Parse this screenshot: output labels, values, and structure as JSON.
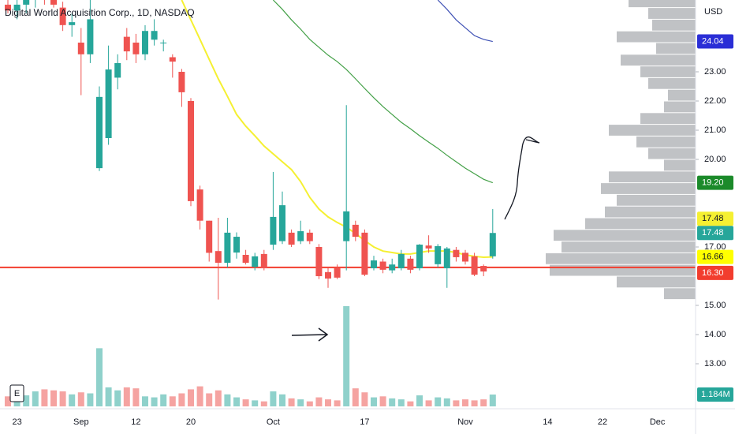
{
  "chart_data": {
    "type": "candlestick",
    "title": "Digital World Acquisition Corp., 1D, NASDAQ",
    "currency": "USD",
    "button": "E",
    "categories": [
      null,
      "23",
      null,
      null,
      null,
      null,
      null,
      null,
      "Sep",
      null,
      null,
      null,
      null,
      null,
      "12",
      null,
      null,
      null,
      null,
      null,
      "20",
      null,
      null,
      null,
      null,
      null,
      null,
      null,
      null,
      "Oct",
      null,
      null,
      null,
      null,
      null,
      null,
      null,
      null,
      null,
      "17",
      null,
      null,
      null,
      null,
      null,
      null,
      null,
      null,
      null,
      null,
      "Nov",
      null,
      null,
      null,
      null,
      null,
      null,
      null,
      null,
      "14",
      null,
      null,
      null,
      null,
      null,
      "22",
      null,
      null,
      null,
      null,
      null,
      "Dec",
      null
    ],
    "open": [
      25.3,
      25.1,
      25.3,
      25.5,
      25.8,
      25.6,
      25.2,
      24.6,
      24.0,
      23.6,
      19.7,
      20.73,
      22.8,
      24.2,
      24.0,
      23.6,
      24.1,
      24.0,
      23.5,
      23.0,
      22.0,
      18.97,
      17.9,
      16.86,
      16.46,
      16.81,
      16.73,
      16.32,
      16.76,
      17.08,
      17.2,
      17.49,
      17.2,
      17.49,
      17.0,
      16.14,
      16.27,
      17.2,
      17.76,
      17.49,
      16.27,
      16.5,
      16.2,
      16.27,
      16.6,
      16.27,
      17.05,
      16.41,
      16.27,
      16.9,
      16.8,
      16.68,
      16.35,
      16.68,
      null,
      null,
      null,
      null,
      null,
      null,
      null,
      null,
      null,
      null,
      null,
      null,
      null,
      null,
      null,
      null,
      null,
      null,
      null
    ],
    "high": [
      25.6,
      25.5,
      25.8,
      26.0,
      26.2,
      25.9,
      25.4,
      25.0,
      24.5,
      25.6,
      22.5,
      23.9,
      23.6,
      24.5,
      24.3,
      24.6,
      24.8,
      24.1,
      23.6,
      23.1,
      22.1,
      19.1,
      17.9,
      18.0,
      18.0,
      17.5,
      16.9,
      16.8,
      16.9,
      19.57,
      18.9,
      17.6,
      17.9,
      17.6,
      17.1,
      16.3,
      16.4,
      21.86,
      17.9,
      17.6,
      16.7,
      16.6,
      16.6,
      16.9,
      16.7,
      17.1,
      17.4,
      17.1,
      17.0,
      17.0,
      16.9,
      16.8,
      16.4,
      18.3,
      null,
      null,
      null,
      null,
      null,
      null,
      null,
      null,
      null,
      null,
      null,
      null,
      null,
      null,
      null,
      null,
      null,
      null,
      null
    ],
    "low": [
      25.0,
      24.8,
      25.0,
      25.2,
      25.3,
      25.2,
      24.4,
      24.2,
      22.2,
      23.3,
      19.6,
      20.5,
      22.4,
      23.4,
      23.3,
      23.4,
      23.9,
      23.7,
      22.8,
      21.8,
      18.4,
      17.6,
      16.5,
      15.2,
      16.3,
      16.6,
      16.4,
      16.2,
      16.2,
      16.9,
      17.1,
      17.0,
      17.1,
      17.1,
      15.9,
      15.6,
      15.9,
      16.2,
      17.2,
      16.0,
      16.2,
      16.1,
      16.1,
      16.2,
      16.1,
      16.2,
      16.8,
      16.3,
      15.6,
      16.5,
      16.4,
      16.0,
      16.0,
      16.6,
      null,
      null,
      null,
      null,
      null,
      null,
      null,
      null,
      null,
      null,
      null,
      null,
      null,
      null,
      null,
      null,
      null,
      null,
      null
    ],
    "close": [
      25.1,
      25.3,
      25.5,
      25.8,
      25.6,
      25.3,
      24.6,
      24.7,
      23.6,
      24.8,
      22.14,
      23.08,
      23.3,
      23.7,
      23.6,
      24.4,
      24.4,
      24.0,
      23.35,
      22.3,
      18.57,
      17.9,
      16.8,
      16.46,
      17.49,
      17.35,
      16.46,
      16.68,
      16.27,
      18.03,
      18.43,
      17.08,
      17.54,
      17.2,
      16.0,
      15.92,
      15.95,
      18.22,
      17.35,
      16.05,
      16.54,
      16.22,
      16.4,
      16.76,
      16.22,
      17.08,
      16.95,
      17.03,
      16.95,
      16.65,
      16.5,
      16.05,
      16.16,
      17.48,
      null,
      null,
      null,
      null,
      null,
      null,
      null,
      null,
      null,
      null,
      null,
      null,
      null,
      null,
      null,
      null,
      null,
      null,
      null
    ],
    "volume": [
      1.0,
      1.3,
      1.1,
      1.5,
      1.7,
      1.6,
      1.5,
      1.2,
      1.4,
      1.3,
      5.8,
      1.9,
      1.6,
      1.9,
      1.8,
      1.0,
      0.9,
      1.2,
      1.0,
      1.3,
      1.7,
      2.0,
      1.3,
      1.6,
      1.2,
      0.9,
      0.7,
      0.6,
      0.5,
      1.5,
      1.2,
      0.8,
      0.7,
      0.5,
      0.9,
      0.7,
      0.6,
      10.0,
      1.8,
      1.4,
      0.9,
      1.0,
      0.8,
      0.7,
      0.5,
      1.1,
      0.6,
      0.9,
      0.8,
      0.6,
      0.7,
      0.6,
      0.7,
      1.184,
      null,
      null,
      null,
      null,
      null,
      null,
      null,
      null,
      null,
      null,
      null,
      null,
      null,
      null,
      null,
      null,
      null,
      null,
      null
    ],
    "colors": {
      "up": "#26a69a",
      "down": "#ef5350",
      "up_volume": "#8fd1cb",
      "down_volume": "#f5a3a1"
    },
    "ylim": [
      11.54,
      25.46
    ],
    "yticks": [
      {
        "value": 23,
        "label": "23.00"
      },
      {
        "value": 22,
        "label": "22.00"
      },
      {
        "value": 21,
        "label": "21.00"
      },
      {
        "value": 20,
        "label": "20.00"
      },
      {
        "value": 17,
        "label": "17.00"
      },
      {
        "value": 15,
        "label": "15.00"
      },
      {
        "value": 14,
        "label": "14.00"
      },
      {
        "value": 13,
        "label": "13.00"
      }
    ],
    "grid": false,
    "moving_averages": [
      {
        "color": "#f5f032",
        "values": [
          null,
          null,
          null,
          null,
          null,
          null,
          null,
          null,
          null,
          null,
          null,
          null,
          null,
          null,
          null,
          null,
          null,
          null,
          null,
          25.46,
          24.78,
          24.11,
          23.43,
          22.76,
          22.16,
          21.54,
          21.14,
          20.81,
          20.46,
          20.19,
          19.92,
          19.65,
          19.24,
          18.7,
          18.3,
          18.03,
          17.84,
          17.68,
          17.46,
          17.22,
          17.0,
          16.86,
          16.81,
          16.76,
          16.76,
          16.81,
          16.86,
          16.86,
          16.86,
          16.81,
          16.73,
          16.68,
          16.65,
          16.66,
          null,
          null,
          null,
          null,
          null,
          null,
          null,
          null,
          null,
          null,
          null,
          null,
          null,
          null,
          null,
          null,
          null,
          null,
          null
        ]
      },
      {
        "color": "#43a047",
        "values": [
          null,
          null,
          null,
          null,
          null,
          null,
          null,
          null,
          null,
          null,
          null,
          null,
          null,
          null,
          null,
          null,
          null,
          null,
          null,
          null,
          null,
          null,
          null,
          null,
          null,
          null,
          null,
          null,
          null,
          25.46,
          25.14,
          24.78,
          24.46,
          24.11,
          23.84,
          23.57,
          23.35,
          23.08,
          22.76,
          22.43,
          22.11,
          21.81,
          21.54,
          21.27,
          21.05,
          20.81,
          20.59,
          20.38,
          20.14,
          19.92,
          19.7,
          19.51,
          19.32,
          19.2,
          null,
          null,
          null,
          null,
          null,
          null,
          null,
          null,
          null,
          null,
          null,
          null,
          null,
          null,
          null,
          null,
          null,
          null,
          null
        ]
      },
      {
        "color": "#3f51b5",
        "values": [
          null,
          null,
          null,
          null,
          null,
          null,
          null,
          null,
          null,
          null,
          null,
          null,
          null,
          null,
          null,
          null,
          null,
          null,
          null,
          null,
          null,
          null,
          null,
          null,
          null,
          null,
          null,
          null,
          null,
          null,
          null,
          null,
          null,
          null,
          null,
          null,
          null,
          null,
          null,
          null,
          null,
          null,
          null,
          null,
          null,
          null,
          null,
          25.46,
          25.14,
          24.78,
          24.51,
          24.24,
          24.11,
          24.04,
          null,
          null,
          null,
          null,
          null,
          null,
          null,
          null,
          null,
          null,
          null,
          null,
          null,
          null,
          null,
          null,
          null,
          null,
          null
        ]
      }
    ],
    "price_line": {
      "value": 16.3,
      "color": "#f23d2e"
    },
    "price_tags": [
      {
        "value": 24.04,
        "color": "#2a2ed6",
        "text_color": "#ffffff"
      },
      {
        "value": 19.2,
        "label": "19.20",
        "color": "#1b8a2a",
        "text_color": "#ffffff"
      },
      {
        "value": 17.48,
        "color": "#f5f032",
        "text_color": "#131722"
      },
      {
        "value": 17.48,
        "color": "#26a69a",
        "text_color": "#ffffff"
      },
      {
        "value": 16.66,
        "color": "#ffff00",
        "text_color": "#131722"
      },
      {
        "value": 16.3,
        "label": "16.30",
        "color": "#f23d2e",
        "text_color": "#ffffff"
      }
    ],
    "volume_tag": {
      "value": 1.184,
      "label": "1.184M",
      "color": "#26a69a",
      "text_color": "#ffffff"
    },
    "volume_profile": {
      "color": "#8c8f96",
      "prices": [
        25.4,
        25.0,
        24.6,
        24.2,
        23.8,
        23.4,
        23.0,
        22.6,
        22.2,
        21.8,
        21.4,
        21.0,
        20.6,
        20.2,
        19.8,
        19.4,
        19.0,
        18.6,
        18.2,
        17.8,
        17.4,
        17.0,
        16.6,
        16.2,
        15.8,
        15.4
      ],
      "values": [
        85,
        60,
        55,
        100,
        50,
        95,
        70,
        60,
        35,
        40,
        70,
        110,
        75,
        60,
        40,
        110,
        120,
        100,
        115,
        140,
        180,
        170,
        190,
        185,
        100,
        40
      ]
    }
  }
}
